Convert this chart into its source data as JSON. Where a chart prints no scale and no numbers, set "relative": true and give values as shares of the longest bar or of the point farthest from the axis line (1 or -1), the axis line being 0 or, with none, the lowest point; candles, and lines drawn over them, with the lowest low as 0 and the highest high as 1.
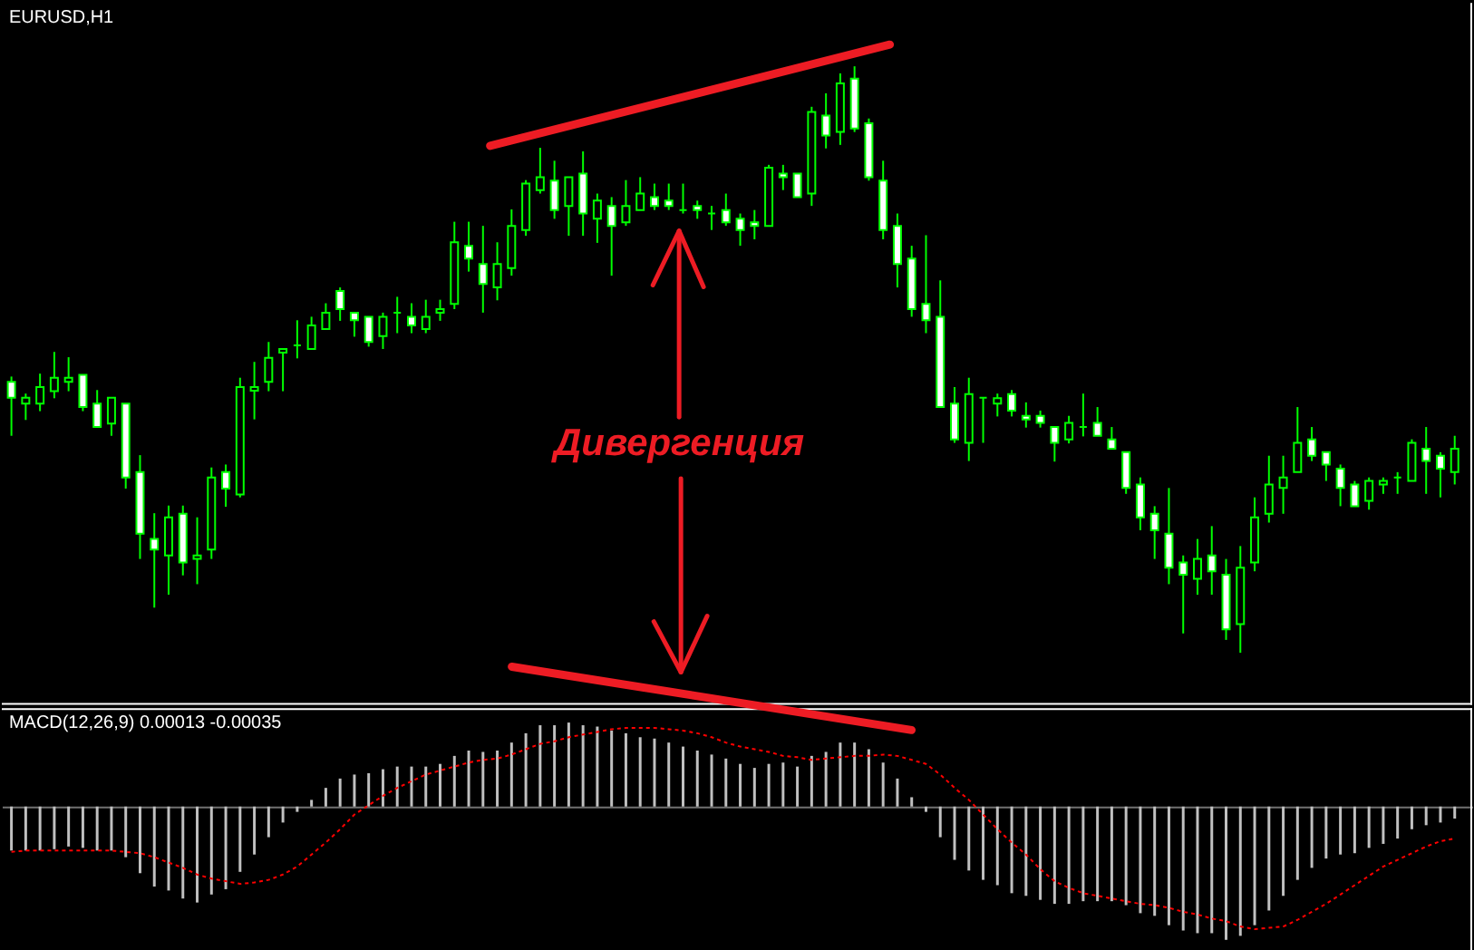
{
  "chart_data": [
    {
      "type": "candlestick",
      "title": "EURUSD,H1",
      "relative": true,
      "color": "#00ff00",
      "annotations": [
        "Дивергенция"
      ],
      "categories": [
        null,
        null,
        null,
        null,
        null,
        null,
        null,
        null,
        null,
        null,
        null,
        null,
        null,
        null,
        null,
        null,
        null,
        null,
        null,
        null,
        null,
        null,
        null,
        null,
        null,
        null,
        null,
        null,
        null,
        null,
        null,
        null,
        null,
        null,
        null,
        null,
        null,
        null,
        null,
        null,
        null,
        null,
        null,
        null,
        null,
        null,
        null,
        null,
        null,
        null,
        null,
        null,
        null,
        null,
        null,
        null,
        null,
        null,
        null,
        null,
        null,
        null,
        null,
        null,
        null,
        null,
        null,
        null,
        null,
        null,
        null,
        null,
        null,
        null,
        null,
        null,
        null,
        null,
        null,
        null,
        null,
        null,
        null,
        null,
        null,
        null,
        null,
        null,
        null,
        null,
        null,
        null,
        null,
        null,
        null,
        null,
        null,
        null,
        null,
        null,
        null,
        null
      ],
      "ohlc": [
        [
          0.462,
          0.471,
          0.37,
          0.435
        ],
        [
          0.425,
          0.442,
          0.397,
          0.435
        ],
        [
          0.425,
          0.476,
          0.412,
          0.453
        ],
        [
          0.446,
          0.513,
          0.434,
          0.469
        ],
        [
          0.462,
          0.504,
          0.446,
          0.469
        ],
        [
          0.474,
          0.474,
          0.412,
          0.419
        ],
        [
          0.425,
          0.448,
          0.385,
          0.385
        ],
        [
          0.391,
          0.435,
          0.37,
          0.435
        ],
        [
          0.425,
          0.425,
          0.28,
          0.299
        ],
        [
          0.308,
          0.337,
          0.16,
          0.203
        ],
        [
          0.194,
          0.238,
          0.077,
          0.176
        ],
        [
          0.166,
          0.251,
          0.099,
          0.231
        ],
        [
          0.237,
          0.251,
          0.132,
          0.154
        ],
        [
          0.16,
          0.231,
          0.117,
          0.166
        ],
        [
          0.176,
          0.316,
          0.16,
          0.299
        ],
        [
          0.308,
          0.321,
          0.249,
          0.28
        ],
        [
          0.27,
          0.469,
          0.265,
          0.453
        ],
        [
          0.447,
          0.496,
          0.398,
          0.453
        ],
        [
          0.462,
          0.53,
          0.446,
          0.503
        ],
        [
          0.512,
          0.518,
          0.446,
          0.518
        ],
        [
          0.524,
          0.567,
          0.502,
          0.524
        ],
        [
          0.518,
          0.573,
          0.518,
          0.558
        ],
        [
          0.552,
          0.596,
          0.552,
          0.58
        ],
        [
          0.617,
          0.623,
          0.566,
          0.586
        ],
        [
          0.58,
          0.58,
          0.539,
          0.567
        ],
        [
          0.573,
          0.573,
          0.522,
          0.53
        ],
        [
          0.54,
          0.58,
          0.518,
          0.573
        ],
        [
          0.58,
          0.607,
          0.545,
          0.58
        ],
        [
          0.573,
          0.596,
          0.545,
          0.558
        ],
        [
          0.552,
          0.602,
          0.545,
          0.573
        ],
        [
          0.58,
          0.602,
          0.566,
          0.586
        ],
        [
          0.595,
          0.735,
          0.586,
          0.7
        ],
        [
          0.694,
          0.735,
          0.65,
          0.672
        ],
        [
          0.663,
          0.728,
          0.58,
          0.629
        ],
        [
          0.623,
          0.7,
          0.601,
          0.663
        ],
        [
          0.656,
          0.756,
          0.643,
          0.728
        ],
        [
          0.721,
          0.806,
          0.711,
          0.8
        ],
        [
          0.789,
          0.861,
          0.783,
          0.811
        ],
        [
          0.805,
          0.839,
          0.74,
          0.755
        ],
        [
          0.762,
          0.811,
          0.711,
          0.811
        ],
        [
          0.817,
          0.855,
          0.711,
          0.749
        ],
        [
          0.74,
          0.783,
          0.699,
          0.771
        ],
        [
          0.762,
          0.777,
          0.643,
          0.728
        ],
        [
          0.734,
          0.806,
          0.728,
          0.762
        ],
        [
          0.755,
          0.811,
          0.755,
          0.783
        ],
        [
          0.777,
          0.8,
          0.755,
          0.762
        ],
        [
          0.771,
          0.8,
          0.755,
          0.762
        ],
        [
          0.755,
          0.8,
          0.749,
          0.755
        ],
        [
          0.762,
          0.771,
          0.74,
          0.755
        ],
        [
          0.749,
          0.762,
          0.721,
          0.749
        ],
        [
          0.755,
          0.783,
          0.728,
          0.734
        ],
        [
          0.74,
          0.749,
          0.694,
          0.721
        ],
        [
          0.734,
          0.755,
          0.705,
          0.728
        ],
        [
          0.728,
          0.832,
          0.728,
          0.827
        ],
        [
          0.817,
          0.832,
          0.789,
          0.811
        ],
        [
          0.817,
          0.817,
          0.777,
          0.777
        ],
        [
          0.783,
          0.931,
          0.762,
          0.922
        ],
        [
          0.916,
          0.954,
          0.86,
          0.882
        ],
        [
          0.888,
          0.988,
          0.866,
          0.971
        ],
        [
          0.979,
          1.0,
          0.888,
          0.894
        ],
        [
          0.903,
          0.911,
          0.805,
          0.811
        ],
        [
          0.805,
          0.839,
          0.705,
          0.721
        ],
        [
          0.728,
          0.749,
          0.623,
          0.663
        ],
        [
          0.672,
          0.694,
          0.573,
          0.586
        ],
        [
          0.595,
          0.712,
          0.545,
          0.567
        ],
        [
          0.573,
          0.635,
          0.419,
          0.419
        ],
        [
          0.425,
          0.453,
          0.358,
          0.364
        ],
        [
          0.358,
          0.469,
          0.327,
          0.441
        ],
        [
          0.435,
          0.435,
          0.358,
          0.435
        ],
        [
          0.425,
          0.442,
          0.403,
          0.434
        ],
        [
          0.441,
          0.448,
          0.403,
          0.413
        ],
        [
          0.404,
          0.427,
          0.384,
          0.398
        ],
        [
          0.404,
          0.413,
          0.384,
          0.392
        ],
        [
          0.385,
          0.385,
          0.326,
          0.358
        ],
        [
          0.364,
          0.404,
          0.357,
          0.392
        ],
        [
          0.385,
          0.442,
          0.369,
          0.385
        ],
        [
          0.392,
          0.419,
          0.37,
          0.37
        ],
        [
          0.364,
          0.385,
          0.348,
          0.348
        ],
        [
          0.342,
          0.342,
          0.271,
          0.281
        ],
        [
          0.287,
          0.299,
          0.209,
          0.231
        ],
        [
          0.237,
          0.25,
          0.16,
          0.209
        ],
        [
          0.203,
          0.281,
          0.117,
          0.145
        ],
        [
          0.154,
          0.166,
          0.033,
          0.133
        ],
        [
          0.126,
          0.194,
          0.099,
          0.16
        ],
        [
          0.166,
          0.216,
          0.099,
          0.139
        ],
        [
          0.133,
          0.16,
          0.022,
          0.04
        ],
        [
          0.049,
          0.182,
          0.0,
          0.145
        ],
        [
          0.154,
          0.265,
          0.139,
          0.231
        ],
        [
          0.237,
          0.336,
          0.222,
          0.287
        ],
        [
          0.281,
          0.336,
          0.237,
          0.299
        ],
        [
          0.308,
          0.419,
          0.308,
          0.358
        ],
        [
          0.364,
          0.385,
          0.327,
          0.336
        ],
        [
          0.342,
          0.342,
          0.293,
          0.321
        ],
        [
          0.314,
          0.321,
          0.25,
          0.281
        ],
        [
          0.287,
          0.293,
          0.25,
          0.25
        ],
        [
          0.259,
          0.299,
          0.244,
          0.293
        ],
        [
          0.287,
          0.299,
          0.271,
          0.293
        ],
        [
          0.299,
          0.308,
          0.271,
          0.299
        ],
        [
          0.293,
          0.364,
          0.293,
          0.358
        ],
        [
          0.348,
          0.385,
          0.271,
          0.327
        ],
        [
          0.336,
          0.342,
          0.265,
          0.314
        ],
        [
          0.308,
          0.37,
          0.287,
          0.348
        ]
      ],
      "colors": [
        "#ffffff",
        "#000000",
        "#000000",
        "#000000",
        "#000000",
        "#ffffff",
        "#ffffff",
        "#000000",
        "#ffffff",
        "#ffffff",
        "#ffffff",
        "#000000",
        "#ffffff",
        "#000000",
        "#000000",
        "#ffffff",
        "#000000",
        "#000000",
        "#000000",
        "#000000",
        "#00ff00",
        "#000000",
        "#000000",
        "#ffffff",
        "#ffffff",
        "#ffffff",
        "#000000",
        "#00ff00",
        "#ffffff",
        "#000000",
        "#000000",
        "#000000",
        "#ffffff",
        "#ffffff",
        "#000000",
        "#000000",
        "#000000",
        "#000000",
        "#ffffff",
        "#000000",
        "#ffffff",
        "#000000",
        "#ffffff",
        "#000000",
        "#000000",
        "#ffffff",
        "#ffffff",
        "#00ff00",
        "#ffffff",
        "#00ff00",
        "#ffffff",
        "#ffffff",
        "#ffffff",
        "#000000",
        "#ffffff",
        "#ffffff",
        "#000000",
        "#ffffff",
        "#000000",
        "#ffffff",
        "#ffffff",
        "#ffffff",
        "#ffffff",
        "#ffffff",
        "#ffffff",
        "#ffffff",
        "#ffffff",
        "#000000",
        "#00ff00",
        "#000000",
        "#ffffff",
        "#ffffff",
        "#ffffff",
        "#ffffff",
        "#000000",
        "#00ff00",
        "#ffffff",
        "#ffffff",
        "#ffffff",
        "#ffffff",
        "#ffffff",
        "#ffffff",
        "#ffffff",
        "#000000",
        "#ffffff",
        "#ffffff",
        "#000000",
        "#000000",
        "#000000",
        "#000000",
        "#000000",
        "#ffffff",
        "#ffffff",
        "#ffffff",
        "#ffffff",
        "#000000",
        "#000000",
        "#00ff00",
        "#000000",
        "#ffffff",
        "#ffffff",
        "#000000"
      ]
    },
    {
      "type": "bar",
      "title": "MACD(12,26,9) 0.00013 -0.00035",
      "relative": true,
      "line_style": "dotted",
      "categories": [
        null,
        null,
        null,
        null,
        null,
        null,
        null,
        null,
        null,
        null,
        null,
        null,
        null,
        null,
        null,
        null,
        null,
        null,
        null,
        null,
        null,
        null,
        null,
        null,
        null,
        null,
        null,
        null,
        null,
        null,
        null,
        null,
        null,
        null,
        null,
        null,
        null,
        null,
        null,
        null,
        null,
        null,
        null,
        null,
        null,
        null,
        null,
        null,
        null,
        null,
        null,
        null,
        null,
        null,
        null,
        null,
        null,
        null,
        null,
        null,
        null,
        null,
        null,
        null,
        null,
        null,
        null,
        null,
        null,
        null,
        null,
        null,
        null,
        null,
        null,
        null,
        null,
        null,
        null,
        null,
        null,
        null,
        null,
        null,
        null,
        null,
        null,
        null,
        null,
        null,
        null,
        null,
        null,
        null,
        null,
        null,
        null,
        null,
        null,
        null,
        null,
        null
      ],
      "series": [
        {
          "color": "#c0c0c0",
          "values": [
            -0.33,
            -0.33,
            -0.33,
            -0.32,
            -0.3,
            -0.31,
            -0.33,
            -0.33,
            -0.38,
            -0.5,
            -0.6,
            -0.63,
            -0.69,
            -0.72,
            -0.66,
            -0.62,
            -0.49,
            -0.36,
            -0.23,
            -0.12,
            -0.04,
            0.05,
            0.14,
            0.21,
            0.24,
            0.25,
            0.28,
            0.3,
            0.3,
            0.3,
            0.32,
            0.38,
            0.42,
            0.41,
            0.42,
            0.48,
            0.55,
            0.61,
            0.61,
            0.63,
            0.61,
            0.6,
            0.57,
            0.55,
            0.52,
            0.51,
            0.48,
            0.45,
            0.42,
            0.39,
            0.36,
            0.32,
            0.29,
            0.32,
            0.33,
            0.3,
            0.38,
            0.41,
            0.48,
            0.48,
            0.43,
            0.33,
            0.21,
            0.07,
            -0.04,
            -0.23,
            -0.4,
            -0.48,
            -0.55,
            -0.59,
            -0.65,
            -0.67,
            -0.7,
            -0.73,
            -0.73,
            -0.71,
            -0.71,
            -0.71,
            -0.74,
            -0.8,
            -0.82,
            -0.89,
            -0.93,
            -0.95,
            -0.95,
            -1.0,
            -0.97,
            -0.89,
            -0.78,
            -0.67,
            -0.55,
            -0.46,
            -0.39,
            -0.36,
            -0.35,
            -0.31,
            -0.28,
            -0.24,
            -0.17,
            -0.14,
            -0.12,
            -0.09
          ]
        },
        {
          "type": "line",
          "color": "#ff0000",
          "values": [
            -0.34,
            -0.33,
            -0.33,
            -0.33,
            -0.33,
            -0.33,
            -0.33,
            -0.33,
            -0.34,
            -0.35,
            -0.38,
            -0.42,
            -0.46,
            -0.51,
            -0.54,
            -0.56,
            -0.58,
            -0.57,
            -0.55,
            -0.51,
            -0.45,
            -0.36,
            -0.27,
            -0.17,
            -0.06,
            0.01,
            0.08,
            0.14,
            0.19,
            0.24,
            0.27,
            0.3,
            0.33,
            0.35,
            0.36,
            0.39,
            0.43,
            0.47,
            0.49,
            0.52,
            0.54,
            0.56,
            0.58,
            0.59,
            0.59,
            0.59,
            0.58,
            0.57,
            0.55,
            0.52,
            0.48,
            0.45,
            0.43,
            0.41,
            0.38,
            0.37,
            0.35,
            0.36,
            0.37,
            0.38,
            0.38,
            0.39,
            0.38,
            0.35,
            0.32,
            0.24,
            0.14,
            0.05,
            -0.06,
            -0.17,
            -0.27,
            -0.36,
            -0.47,
            -0.56,
            -0.61,
            -0.65,
            -0.67,
            -0.69,
            -0.71,
            -0.73,
            -0.74,
            -0.76,
            -0.79,
            -0.81,
            -0.84,
            -0.86,
            -0.9,
            -0.92,
            -0.91,
            -0.9,
            -0.85,
            -0.79,
            -0.73,
            -0.66,
            -0.59,
            -0.52,
            -0.45,
            -0.4,
            -0.35,
            -0.3,
            -0.26,
            -0.24
          ]
        }
      ]
    }
  ]
}
